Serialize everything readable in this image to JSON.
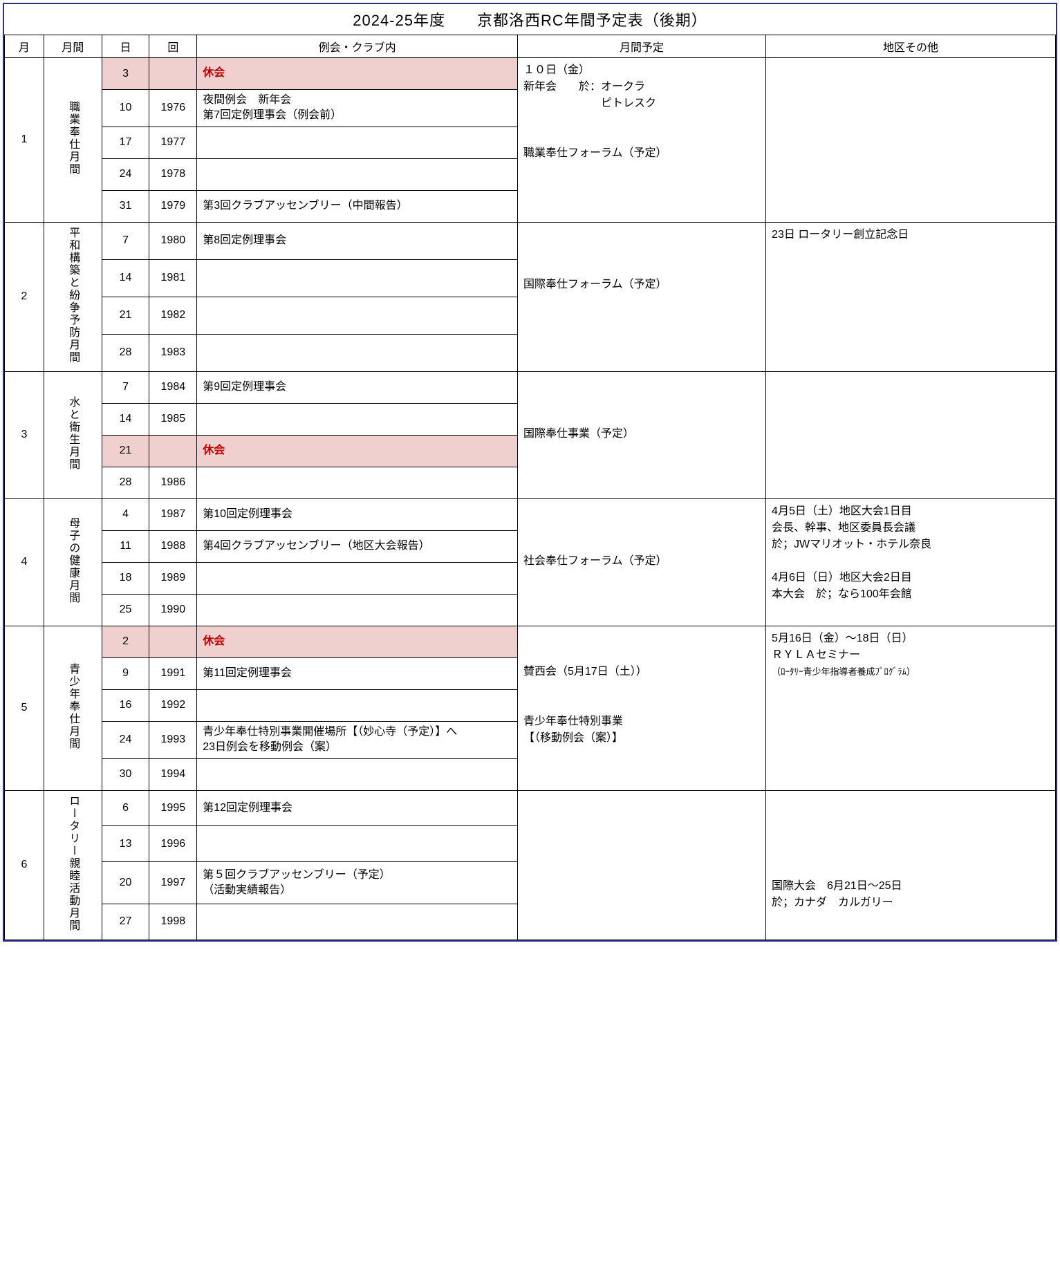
{
  "title": "2024-25年度　　京都洛西RC年間予定表（後期）",
  "headers": {
    "month": "月",
    "theme": "月間",
    "day": "日",
    "num": "回",
    "event": "例会・クラブ内",
    "monthly": "月間予定",
    "district": "地区その他"
  },
  "colors": {
    "outer_border": "#2b2b8a",
    "cell_border": "#000000",
    "kyukai_bg": "#f0cfcf",
    "kyukai_text": "#c00000"
  },
  "months": [
    {
      "month": "1",
      "theme": "職業奉仕月間",
      "monthly": "１０日（金）\n新年会　　於：オークラ\n　　　　　　　ピトレスク\n\n\n職業奉仕フォーラム（予定）",
      "district": "",
      "rows": [
        {
          "day": "3",
          "num": "",
          "event": "休会",
          "kyukai": true
        },
        {
          "day": "10",
          "num": "1976",
          "event": "夜間例会　新年会\n第7回定例理事会（例会前）"
        },
        {
          "day": "17",
          "num": "1977",
          "event": ""
        },
        {
          "day": "24",
          "num": "1978",
          "event": ""
        },
        {
          "day": "31",
          "num": "1979",
          "event": "第3回クラブアッセンブリー（中間報告）"
        }
      ]
    },
    {
      "month": "2",
      "theme": "平和構築と紛争予防月間",
      "monthly": "\n\n\n国際奉仕フォーラム（予定）",
      "district": "23日 ロータリー創立記念日",
      "rows": [
        {
          "day": "7",
          "num": "1980",
          "event": "第8回定例理事会"
        },
        {
          "day": "14",
          "num": "1981",
          "event": ""
        },
        {
          "day": "21",
          "num": "1982",
          "event": ""
        },
        {
          "day": "28",
          "num": "1983",
          "event": ""
        }
      ]
    },
    {
      "month": "3",
      "theme": "水と衛生月間",
      "monthly": "\n\n\n国際奉仕事業（予定）",
      "district": "",
      "rows": [
        {
          "day": "7",
          "num": "1984",
          "event": "第9回定例理事会"
        },
        {
          "day": "14",
          "num": "1985",
          "event": ""
        },
        {
          "day": "21",
          "num": "",
          "event": "休会",
          "kyukai": true
        },
        {
          "day": "28",
          "num": "1986",
          "event": ""
        }
      ]
    },
    {
      "month": "4",
      "theme": "母子の健康月間",
      "monthly": "\n\n\n社会奉仕フォーラム（予定）",
      "district": "4月5日（土）地区大会1日目\n会長、幹事、地区委員長会議\n於；JWマリオット・ホテル奈良\n\n4月6日（日）地区大会2日目\n本大会　於；なら100年会館",
      "rows": [
        {
          "day": "4",
          "num": "1987",
          "event": "第10回定例理事会"
        },
        {
          "day": "11",
          "num": "1988",
          "event": "第4回クラブアッセンブリー（地区大会報告）"
        },
        {
          "day": "18",
          "num": "1989",
          "event": ""
        },
        {
          "day": "25",
          "num": "1990",
          "event": ""
        }
      ]
    },
    {
      "month": "5",
      "theme": "青少年奉仕月間",
      "monthly": "\n\n賛西会（5月17日（土））\n\n\n青少年奉仕特別事業\n【（移動例会（案）】",
      "district": "5月16日（金）～18日（日）\nＲＹＬＡセミナー\n<span class=\"small\">（ﾛｰﾀﾘｰ青少年指導者養成ﾌﾟﾛｸﾞﾗﾑ）</span>",
      "rows": [
        {
          "day": "2",
          "num": "",
          "event": "休会",
          "kyukai": true
        },
        {
          "day": "9",
          "num": "1991",
          "event": "第11回定例理事会"
        },
        {
          "day": "16",
          "num": "1992",
          "event": ""
        },
        {
          "day": "24",
          "num": "1993",
          "event": "青少年奉仕特別事業開催場所【（妙心寺（予定）】へ\n23日例会を移動例会（案）"
        },
        {
          "day": "30",
          "num": "1994",
          "event": ""
        }
      ]
    },
    {
      "month": "6",
      "theme": "ロータリー親睦活動月間",
      "monthly": "",
      "district": "\n\n\n\n\n国際大会　6月21日～25日\n於；カナダ　カルガリー",
      "rows": [
        {
          "day": "6",
          "num": "1995",
          "event": "第12回定例理事会"
        },
        {
          "day": "13",
          "num": "1996",
          "event": ""
        },
        {
          "day": "20",
          "num": "1997",
          "event": "第５回クラブアッセンブリー（予定）\n（活動実績報告）"
        },
        {
          "day": "27",
          "num": "1998",
          "event": ""
        }
      ]
    }
  ]
}
